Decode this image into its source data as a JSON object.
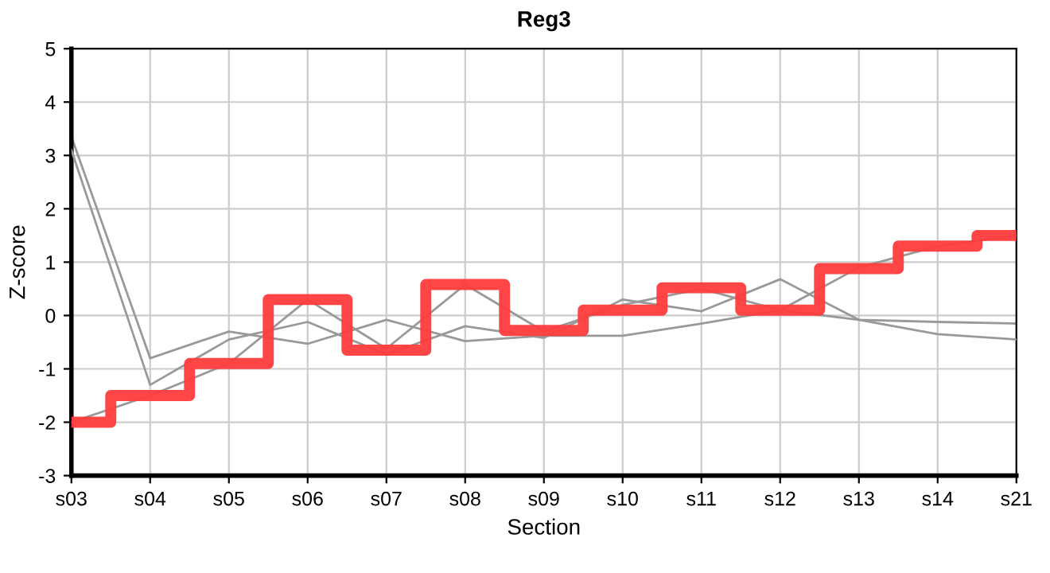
{
  "chart_data": {
    "type": "line",
    "title": "Reg3",
    "xlabel": "Section",
    "ylabel": "Z-score",
    "categories": [
      "s03",
      "s04",
      "s05",
      "s06",
      "s07",
      "s08",
      "s09",
      "s10",
      "s11",
      "s12",
      "s13",
      "s14",
      "s21"
    ],
    "series": [
      {
        "color": "#999999",
        "values": [
          3.35,
          -0.8,
          -0.3,
          -0.53,
          -0.08,
          -0.48,
          -0.38,
          -0.38,
          -0.15,
          0.1,
          -0.08,
          -0.12,
          -0.15
        ]
      },
      {
        "color": "#999999",
        "values": [
          3.1,
          -1.3,
          -0.45,
          -0.12,
          -0.73,
          -0.2,
          -0.42,
          0.3,
          0.08,
          0.68,
          -0.08,
          -0.35,
          -0.45
        ]
      },
      {
        "color": "#999999",
        "values": [
          -2.0,
          -1.5,
          -0.9,
          0.3,
          -0.62,
          0.58,
          -0.3,
          0.2,
          0.5,
          0.1,
          0.9,
          1.3,
          1.5
        ]
      },
      {
        "type": "step",
        "color": "#ff3b3b",
        "values": [
          -2.0,
          -1.5,
          -0.9,
          0.3,
          -0.65,
          0.58,
          -0.28,
          0.1,
          0.52,
          0.1,
          0.88,
          1.3,
          1.5
        ]
      }
    ],
    "ylim": [
      -3,
      5
    ],
    "yticks": [
      -3,
      -2,
      -1,
      0,
      1,
      2,
      3,
      4,
      5
    ],
    "grid": true,
    "legend": false
  }
}
